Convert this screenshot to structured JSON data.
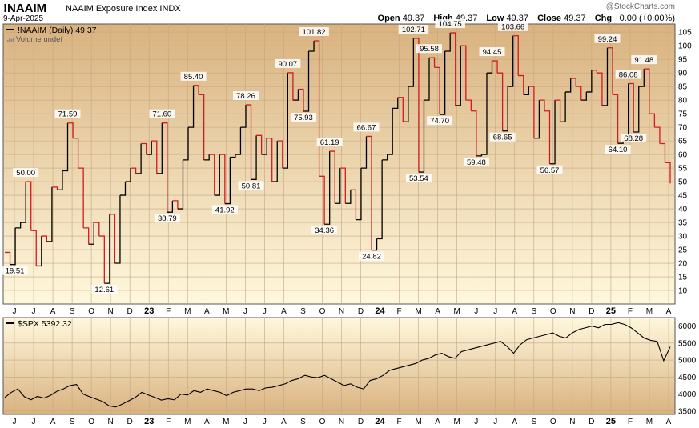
{
  "header": {
    "symbol": "!NAAIM",
    "name": "NAAIM Exposure Index",
    "exchange": "INDX",
    "date": "9-Apr-2025",
    "watermark": "@StockCharts.com",
    "open_label": "Open",
    "open": "49.37",
    "high_label": "High",
    "high": "49.37",
    "low_label": "Low",
    "low": "49.37",
    "close_label": "Close",
    "close": "49.37",
    "chg_label": "Chg",
    "chg": "+0.00 (+0.00%)"
  },
  "colors": {
    "up": "#000000",
    "down": "#d11a22",
    "bg_top": "#d9b27f",
    "bg_bottom": "#fff8dd",
    "grid": "#c4a781"
  },
  "chart_data": [
    {
      "type": "line",
      "legend": "!NAAIM (Daily) 49.37",
      "sublegend": "Volume undef",
      "ylim": [
        5,
        108
      ],
      "yticks": [
        10,
        15,
        20,
        25,
        30,
        35,
        40,
        45,
        50,
        55,
        60,
        65,
        70,
        75,
        80,
        85,
        90,
        95,
        100,
        105
      ],
      "x_ticks": [
        "J",
        "J",
        "A",
        "S",
        "O",
        "N",
        "D",
        "23",
        "F",
        "M",
        "A",
        "M",
        "J",
        "J",
        "A",
        "S",
        "O",
        "N",
        "D",
        "24",
        "F",
        "M",
        "A",
        "M",
        "J",
        "J",
        "A",
        "S",
        "O",
        "N",
        "D",
        "25",
        "F",
        "M",
        "A"
      ],
      "series": [
        {
          "values": [
            24.0,
            19.51,
            33.0,
            35.0,
            50.0,
            32.0,
            19.0,
            30.0,
            28.0,
            48.0,
            47.0,
            54.0,
            71.59,
            66.0,
            55.0,
            33.0,
            27.0,
            35.0,
            30.0,
            12.61,
            38.0,
            20.0,
            45.0,
            50.0,
            55.0,
            53.0,
            64.0,
            60.0,
            65.0,
            53.0,
            71.6,
            38.79,
            43.0,
            40.0,
            58.0,
            70.0,
            85.4,
            82.0,
            58.0,
            60.0,
            45.0,
            60.0,
            41.92,
            59.0,
            60.0,
            70.0,
            78.26,
            50.81,
            67.0,
            60.0,
            66.0,
            50.0,
            65.0,
            55.0,
            90.07,
            80.0,
            84.0,
            75.93,
            98.0,
            101.82,
            52.0,
            34.36,
            61.19,
            42.0,
            55.0,
            42.0,
            47.0,
            36.0,
            55.0,
            66.67,
            24.82,
            29.0,
            58.0,
            60.0,
            77.0,
            81.0,
            72.0,
            85.0,
            102.71,
            53.54,
            80.0,
            95.58,
            92.0,
            74.7,
            98.0,
            104.75,
            78.0,
            100.0,
            80.0,
            76.0,
            59.48,
            60.0,
            90.0,
            94.45,
            90.0,
            68.65,
            85.0,
            103.66,
            89.0,
            82.0,
            85.0,
            66.0,
            80.0,
            76.0,
            56.57,
            80.0,
            72.0,
            83.0,
            88.0,
            85.0,
            80.0,
            83.0,
            91.0,
            90.0,
            78.0,
            99.24,
            82.0,
            64.1,
            65.0,
            86.08,
            68.28,
            85.0,
            91.48,
            75.0,
            70.0,
            64.0,
            57.0,
            49.37
          ],
          "labels": {
            "1": "19.51",
            "4": "50.00",
            "12": "71.59",
            "19": "12.61",
            "30": "71.60",
            "31": "38.79",
            "36": "85.40",
            "42": "41.92",
            "46": "78.26",
            "47": "50.81",
            "54": "90.07",
            "57": "75.93",
            "59": "101.82",
            "61": "34.36",
            "62": "61.19",
            "69": "66.67",
            "70": "24.82",
            "78": "102.71",
            "79": "53.54",
            "81": "95.58",
            "83": "74.70",
            "85": "104.75",
            "90": "59.48",
            "93": "94.45",
            "95": "68.65",
            "97": "103.66",
            "104": "56.57",
            "115": "99.24",
            "117": "64.10",
            "119": "86.08",
            "120": "68.28",
            "122": "91.48"
          }
        }
      ]
    },
    {
      "type": "line",
      "legend": "$SPX 5392.32",
      "ylim": [
        3400,
        6250
      ],
      "yticks": [
        3500,
        4000,
        4500,
        5000,
        5500,
        6000
      ],
      "x_ticks": [
        "J",
        "J",
        "A",
        "S",
        "O",
        "N",
        "D",
        "23",
        "F",
        "M",
        "A",
        "M",
        "J",
        "J",
        "A",
        "S",
        "O",
        "N",
        "D",
        "24",
        "F",
        "M",
        "A",
        "M",
        "J",
        "J",
        "A",
        "S",
        "O",
        "N",
        "D",
        "25",
        "F",
        "M",
        "A"
      ],
      "series": [
        {
          "values": [
            3900,
            4050,
            4150,
            3920,
            3830,
            3930,
            3880,
            3960,
            4080,
            4150,
            4250,
            4280,
            4000,
            3920,
            3850,
            3780,
            3650,
            3620,
            3700,
            3800,
            3900,
            4050,
            3970,
            3900,
            3820,
            3860,
            3830,
            4000,
            3970,
            4100,
            4050,
            4150,
            4100,
            4050,
            3950,
            4050,
            4100,
            4150,
            4150,
            4100,
            4180,
            4200,
            4250,
            4300,
            4400,
            4450,
            4550,
            4500,
            4480,
            4550,
            4450,
            4350,
            4250,
            4300,
            4200,
            4150,
            4400,
            4450,
            4550,
            4700,
            4750,
            4800,
            4850,
            4900,
            5000,
            5050,
            5150,
            5200,
            5100,
            5050,
            5250,
            5300,
            5350,
            5400,
            5450,
            5500,
            5550,
            5400,
            5200,
            5450,
            5600,
            5650,
            5700,
            5750,
            5800,
            5700,
            5650,
            5800,
            5900,
            5950,
            6000,
            5950,
            6050,
            6050,
            6100,
            6050,
            5950,
            5800,
            5650,
            5580,
            5550,
            4980,
            5392
          ]
        }
      ]
    }
  ]
}
